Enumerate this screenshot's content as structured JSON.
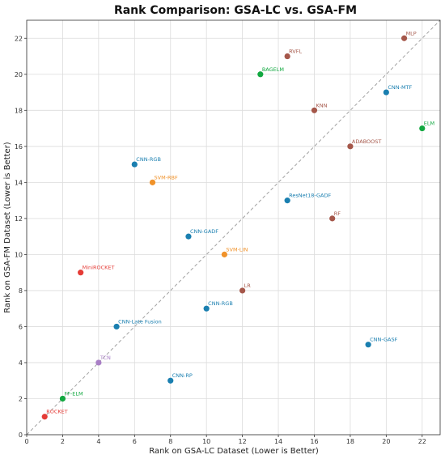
{
  "chart_data": {
    "type": "scatter",
    "title": "Rank Comparison: GSA-LC vs. GSA-FM",
    "xlabel": "Rank on GSA-LC Dataset (Lower is Better)",
    "ylabel": "Rank on GSA-FM Dataset (Lower is Better)",
    "xlim": [
      0,
      23
    ],
    "ylim": [
      0,
      23
    ],
    "xticks": [
      "0",
      "2",
      "4",
      "6",
      "8",
      "10",
      "12",
      "14",
      "16",
      "18",
      "20",
      "22"
    ],
    "yticks": [
      "0",
      "2",
      "4",
      "6",
      "8",
      "10",
      "12",
      "14",
      "16",
      "18",
      "20",
      "22"
    ],
    "grid": true,
    "reference_line": "y = x (dashed)",
    "points": [
      {
        "label": "MLP",
        "x": 21,
        "y": 22,
        "color": "#a5574a"
      },
      {
        "label": "RVFL",
        "x": 14.5,
        "y": 21,
        "color": "#a5574a"
      },
      {
        "label": "BAGELM",
        "x": 13,
        "y": 20,
        "color": "#12a840"
      },
      {
        "label": "CNN-MTF",
        "x": 20,
        "y": 19,
        "color": "#1a7fb0"
      },
      {
        "label": "KNN",
        "x": 16,
        "y": 18,
        "color": "#a5574a"
      },
      {
        "label": "ELM",
        "x": 22,
        "y": 17,
        "color": "#12a840"
      },
      {
        "label": "ADABOOST",
        "x": 18,
        "y": 16,
        "color": "#a5574a"
      },
      {
        "label": "CNN-RGB",
        "x": 6,
        "y": 15,
        "color": "#1a7fb0"
      },
      {
        "label": "SVM-RBF",
        "x": 7,
        "y": 14,
        "color": "#f0922a"
      },
      {
        "label": "ResNet18-GADF",
        "x": 14.5,
        "y": 13,
        "color": "#1a7fb0"
      },
      {
        "label": "RF",
        "x": 17,
        "y": 12,
        "color": "#a5574a"
      },
      {
        "label": "CNN-GADF",
        "x": 9,
        "y": 11,
        "color": "#1a7fb0"
      },
      {
        "label": "SVM-LIN",
        "x": 11,
        "y": 10,
        "color": "#f0922a"
      },
      {
        "label": "MiniROCKET",
        "x": 3,
        "y": 9,
        "color": "#e53b36"
      },
      {
        "label": "LR",
        "x": 12,
        "y": 8,
        "color": "#a5574a"
      },
      {
        "label": "CNN-RGB",
        "x": 10,
        "y": 7,
        "color": "#1a7fb0"
      },
      {
        "label": "CNN-Late Fusion",
        "x": 5,
        "y": 6,
        "color": "#1a7fb0"
      },
      {
        "label": "CNN-GASF",
        "x": 19,
        "y": 5,
        "color": "#1a7fb0"
      },
      {
        "label": "TCN",
        "x": 4,
        "y": 4,
        "color": "#a97fc6"
      },
      {
        "label": "CNN-RP",
        "x": 8,
        "y": 3,
        "color": "#1a7fb0"
      },
      {
        "label": "FF-ELM",
        "x": 2,
        "y": 2,
        "color": "#12a840"
      },
      {
        "label": "ROCKET",
        "x": 1,
        "y": 1,
        "color": "#e53b36"
      }
    ]
  }
}
